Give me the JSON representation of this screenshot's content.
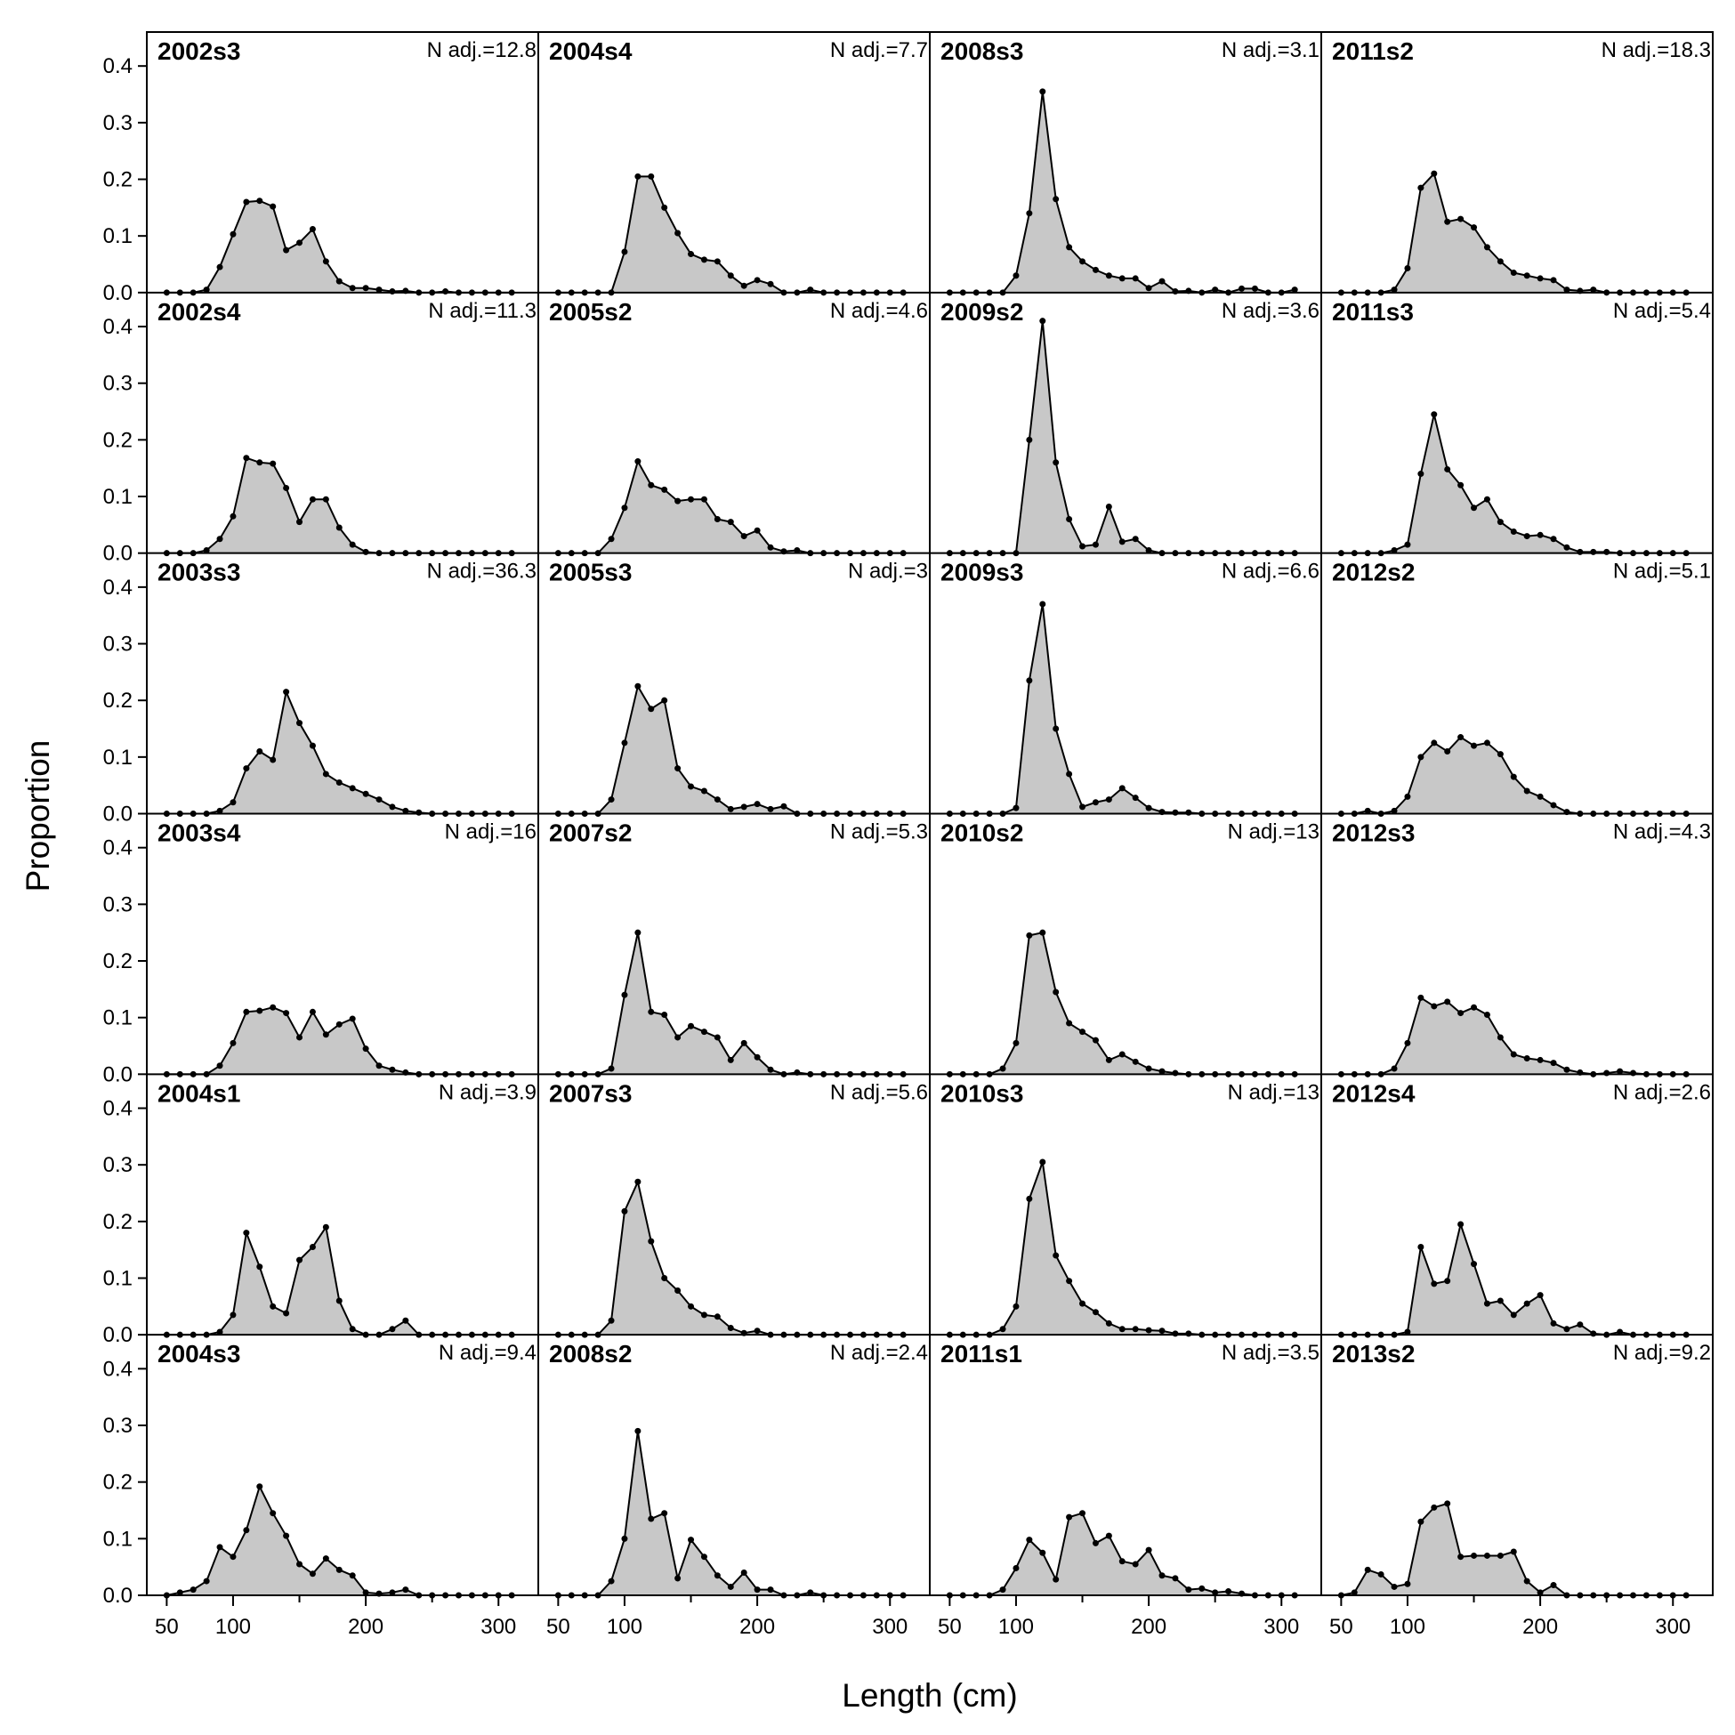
{
  "chart_data": {
    "type": "area",
    "ylabel": "Proportion",
    "xlabel": "Length (cm)",
    "xlim": [
      35,
      330
    ],
    "ylim": [
      0,
      0.46
    ],
    "x_ticks": [
      50,
      100,
      200,
      300
    ],
    "y_ticks": [
      "0.0",
      "0.1",
      "0.2",
      "0.3",
      "0.4"
    ],
    "x_bins": [
      50,
      60,
      70,
      80,
      90,
      100,
      110,
      120,
      130,
      140,
      150,
      160,
      170,
      180,
      190,
      200,
      210,
      220,
      230,
      240,
      250,
      260,
      270,
      280,
      290,
      300,
      310
    ],
    "grid": false,
    "colors": {
      "fill": "#c8c8c8",
      "line": "#000000",
      "point": "#000000"
    },
    "layout_cols": 4,
    "layout_rows": 6,
    "panels": [
      {
        "name": "2002s3",
        "nadj": "N adj.=12.8",
        "values": [
          0,
          0,
          0,
          0.005,
          0.045,
          0.103,
          0.16,
          0.162,
          0.152,
          0.075,
          0.088,
          0.112,
          0.055,
          0.02,
          0.008,
          0.008,
          0.005,
          0.002,
          0.003,
          0,
          0,
          0.002,
          0,
          0,
          0,
          0,
          0
        ]
      },
      {
        "name": "2004s4",
        "nadj": "N adj.=7.7",
        "values": [
          0,
          0,
          0,
          0,
          0,
          0.072,
          0.205,
          0.205,
          0.15,
          0.105,
          0.068,
          0.058,
          0.055,
          0.03,
          0.012,
          0.022,
          0.015,
          0,
          0,
          0.005,
          0,
          0,
          0,
          0,
          0,
          0,
          0
        ]
      },
      {
        "name": "2008s3",
        "nadj": "N adj.=3.1",
        "values": [
          0,
          0,
          0,
          0,
          0,
          0.03,
          0.14,
          0.355,
          0.165,
          0.08,
          0.055,
          0.04,
          0.03,
          0.025,
          0.025,
          0.008,
          0.02,
          0.002,
          0.003,
          0,
          0.005,
          0,
          0.007,
          0.007,
          0,
          0,
          0.005
        ]
      },
      {
        "name": "2011s2",
        "nadj": "N adj.=18.3",
        "values": [
          0,
          0,
          0,
          0,
          0.005,
          0.043,
          0.185,
          0.21,
          0.125,
          0.13,
          0.115,
          0.08,
          0.055,
          0.035,
          0.03,
          0.025,
          0.022,
          0.005,
          0.003,
          0.005,
          0,
          0,
          0,
          0,
          0,
          0,
          0
        ]
      },
      {
        "name": "2002s4",
        "nadj": "N adj.=11.3",
        "values": [
          0,
          0,
          0,
          0.005,
          0.025,
          0.065,
          0.168,
          0.16,
          0.158,
          0.115,
          0.055,
          0.095,
          0.095,
          0.045,
          0.015,
          0.002,
          0,
          0,
          0,
          0,
          0,
          0,
          0,
          0,
          0,
          0,
          0
        ]
      },
      {
        "name": "2005s2",
        "nadj": "N adj.=4.6",
        "values": [
          0,
          0,
          0,
          0,
          0.025,
          0.08,
          0.162,
          0.12,
          0.112,
          0.092,
          0.095,
          0.095,
          0.06,
          0.055,
          0.03,
          0.04,
          0.01,
          0.003,
          0.005,
          0,
          0,
          0,
          0,
          0,
          0,
          0,
          0
        ]
      },
      {
        "name": "2009s2",
        "nadj": "N adj.=3.6",
        "values": [
          0,
          0,
          0,
          0,
          0,
          0,
          0.2,
          0.41,
          0.16,
          0.06,
          0.012,
          0.015,
          0.082,
          0.02,
          0.025,
          0.005,
          0,
          0,
          0,
          0,
          0,
          0,
          0,
          0,
          0,
          0,
          0
        ]
      },
      {
        "name": "2011s3",
        "nadj": "N adj.=5.4",
        "values": [
          0,
          0,
          0,
          0,
          0.005,
          0.015,
          0.14,
          0.245,
          0.148,
          0.12,
          0.08,
          0.095,
          0.055,
          0.038,
          0.03,
          0.032,
          0.025,
          0.01,
          0.002,
          0.002,
          0.002,
          0,
          0,
          0,
          0,
          0,
          0
        ]
      },
      {
        "name": "2003s3",
        "nadj": "N adj.=36.3",
        "values": [
          0,
          0,
          0,
          0,
          0.005,
          0.02,
          0.08,
          0.11,
          0.095,
          0.215,
          0.16,
          0.12,
          0.07,
          0.055,
          0.045,
          0.035,
          0.025,
          0.012,
          0.005,
          0.002,
          0,
          0,
          0,
          0,
          0,
          0,
          0
        ]
      },
      {
        "name": "2005s3",
        "nadj": "N adj.=3",
        "values": [
          0,
          0,
          0,
          0,
          0.025,
          0.125,
          0.225,
          0.185,
          0.2,
          0.08,
          0.048,
          0.04,
          0.025,
          0.008,
          0.012,
          0.017,
          0.008,
          0.013,
          0,
          0,
          0,
          0,
          0,
          0,
          0,
          0,
          0
        ]
      },
      {
        "name": "2009s3",
        "nadj": "N adj.=6.6",
        "values": [
          0,
          0,
          0,
          0,
          0,
          0.01,
          0.235,
          0.37,
          0.15,
          0.07,
          0.012,
          0.02,
          0.025,
          0.045,
          0.028,
          0.01,
          0.003,
          0.002,
          0.002,
          0,
          0,
          0,
          0,
          0,
          0,
          0,
          0
        ]
      },
      {
        "name": "2012s2",
        "nadj": "N adj.=5.1",
        "values": [
          0,
          0,
          0.005,
          0,
          0.005,
          0.03,
          0.1,
          0.125,
          0.11,
          0.135,
          0.12,
          0.125,
          0.105,
          0.065,
          0.04,
          0.03,
          0.015,
          0.003,
          0,
          0,
          0,
          0,
          0,
          0,
          0,
          0,
          0
        ]
      },
      {
        "name": "2003s4",
        "nadj": "N adj.=16",
        "values": [
          0,
          0,
          0,
          0,
          0.015,
          0.055,
          0.11,
          0.112,
          0.118,
          0.108,
          0.065,
          0.11,
          0.07,
          0.088,
          0.098,
          0.045,
          0.015,
          0.008,
          0.003,
          0,
          0,
          0,
          0,
          0,
          0,
          0,
          0
        ]
      },
      {
        "name": "2007s2",
        "nadj": "N adj.=5.3",
        "values": [
          0,
          0,
          0,
          0,
          0.01,
          0.14,
          0.25,
          0.11,
          0.105,
          0.065,
          0.085,
          0.075,
          0.065,
          0.025,
          0.055,
          0.03,
          0.008,
          0,
          0.003,
          0,
          0,
          0,
          0,
          0,
          0,
          0,
          0
        ]
      },
      {
        "name": "2010s2",
        "nadj": "N adj.=13",
        "values": [
          0,
          0,
          0,
          0,
          0.01,
          0.055,
          0.245,
          0.25,
          0.145,
          0.09,
          0.075,
          0.06,
          0.025,
          0.035,
          0.022,
          0.01,
          0.005,
          0.002,
          0,
          0,
          0,
          0,
          0,
          0,
          0,
          0,
          0
        ]
      },
      {
        "name": "2012s3",
        "nadj": "N adj.=4.3",
        "values": [
          0,
          0,
          0,
          0,
          0.01,
          0.055,
          0.135,
          0.12,
          0.128,
          0.108,
          0.118,
          0.105,
          0.065,
          0.035,
          0.028,
          0.025,
          0.02,
          0.008,
          0.003,
          0,
          0.002,
          0.005,
          0.002,
          0,
          0,
          0,
          0
        ]
      },
      {
        "name": "2004s1",
        "nadj": "N adj.=3.9",
        "values": [
          0,
          0,
          0,
          0,
          0.005,
          0.035,
          0.18,
          0.12,
          0.05,
          0.038,
          0.132,
          0.155,
          0.19,
          0.06,
          0.01,
          0,
          0,
          0.01,
          0.025,
          0,
          0,
          0,
          0,
          0,
          0,
          0,
          0
        ]
      },
      {
        "name": "2007s3",
        "nadj": "N adj.=5.6",
        "values": [
          0,
          0,
          0,
          0,
          0.025,
          0.218,
          0.27,
          0.165,
          0.1,
          0.078,
          0.05,
          0.035,
          0.032,
          0.012,
          0.003,
          0.007,
          0,
          0,
          0,
          0,
          0,
          0,
          0,
          0,
          0,
          0,
          0
        ]
      },
      {
        "name": "2010s3",
        "nadj": "N adj.=13",
        "values": [
          0,
          0,
          0,
          0,
          0.01,
          0.05,
          0.24,
          0.305,
          0.14,
          0.095,
          0.055,
          0.04,
          0.02,
          0.01,
          0.01,
          0.008,
          0.007,
          0.002,
          0.002,
          0,
          0,
          0,
          0,
          0,
          0,
          0,
          0
        ]
      },
      {
        "name": "2012s4",
        "nadj": "N adj.=2.6",
        "values": [
          0,
          0,
          0,
          0,
          0,
          0.005,
          0.155,
          0.09,
          0.095,
          0.195,
          0.125,
          0.055,
          0.06,
          0.035,
          0.055,
          0.07,
          0.02,
          0.01,
          0.018,
          0.002,
          0,
          0.005,
          0,
          0,
          0,
          0,
          0
        ]
      },
      {
        "name": "2004s3",
        "nadj": "N adj.=9.4",
        "values": [
          0,
          0.005,
          0.01,
          0.025,
          0.085,
          0.068,
          0.115,
          0.192,
          0.145,
          0.105,
          0.055,
          0.038,
          0.065,
          0.045,
          0.035,
          0.005,
          0.003,
          0.005,
          0.01,
          0,
          0,
          0,
          0,
          0,
          0,
          0,
          0
        ]
      },
      {
        "name": "2008s2",
        "nadj": "N adj.=2.4",
        "values": [
          0,
          0,
          0,
          0,
          0.025,
          0.1,
          0.29,
          0.135,
          0.145,
          0.03,
          0.098,
          0.068,
          0.035,
          0.015,
          0.04,
          0.01,
          0.01,
          0,
          0,
          0.005,
          0,
          0,
          0,
          0,
          0,
          0,
          0
        ]
      },
      {
        "name": "2011s1",
        "nadj": "N adj.=3.5",
        "values": [
          0,
          0,
          0,
          0,
          0.01,
          0.048,
          0.098,
          0.075,
          0.028,
          0.138,
          0.145,
          0.092,
          0.105,
          0.06,
          0.055,
          0.08,
          0.035,
          0.03,
          0.01,
          0.012,
          0.005,
          0.007,
          0.003,
          0,
          0,
          0,
          0
        ]
      },
      {
        "name": "2013s2",
        "nadj": "N adj.=9.2",
        "values": [
          0,
          0.005,
          0.045,
          0.037,
          0.015,
          0.02,
          0.13,
          0.155,
          0.162,
          0.068,
          0.07,
          0.07,
          0.07,
          0.077,
          0.025,
          0.005,
          0.018,
          0,
          0,
          0,
          0,
          0,
          0,
          0,
          0,
          0,
          0
        ]
      }
    ]
  }
}
